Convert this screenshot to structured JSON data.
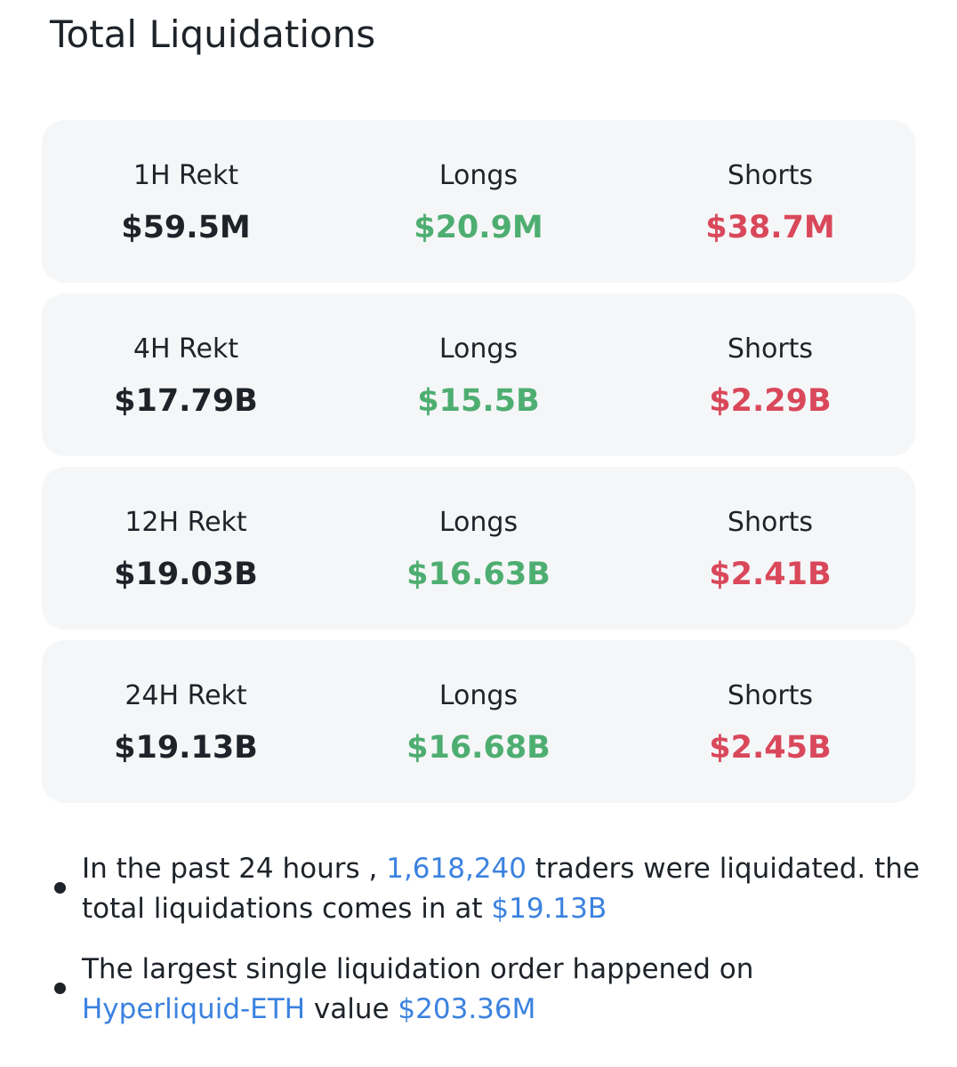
{
  "header": {
    "title": "Total Liquidations"
  },
  "cards": [
    {
      "label": "1H  Rekt",
      "total": "$59.5M",
      "longs_label": "Longs",
      "longs": "$20.9M",
      "shorts_label": "Shorts",
      "shorts": "$38.7M"
    },
    {
      "label": "4H Rekt",
      "total": "$17.79B",
      "longs_label": "Longs",
      "longs": "$15.5B",
      "shorts_label": "Shorts",
      "shorts": "$2.29B"
    },
    {
      "label": "12H Rekt",
      "total": "$19.03B",
      "longs_label": "Longs",
      "longs": "$16.63B",
      "shorts_label": "Shorts",
      "shorts": "$2.41B"
    },
    {
      "label": "24H Rekt",
      "total": "$19.13B",
      "longs_label": "Longs",
      "longs": "$16.68B",
      "shorts_label": "Shorts",
      "shorts": "$2.45B"
    }
  ],
  "notes": [
    {
      "t1": "In the past 24 hours ,",
      "traders": "1,618,240",
      "t2": "traders were liquidated. the total liquidations comes in at",
      "total": "$19.13B"
    },
    {
      "t1": "The largest single liquidation order happened on",
      "pair": "Hyperliquid-ETH",
      "t2": "value",
      "value": "$203.36M"
    }
  ]
}
